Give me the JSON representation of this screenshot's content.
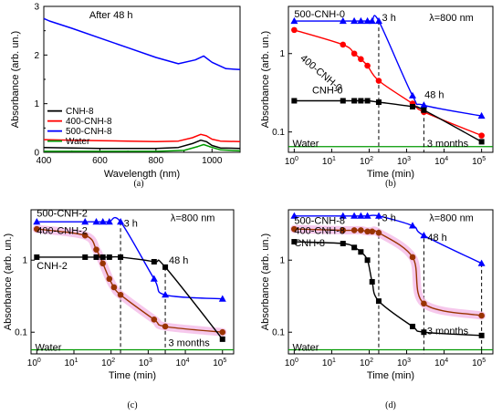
{
  "chart_data": [
    {
      "id": "a",
      "type": "line",
      "caption": "(a)",
      "title": "After 48 h",
      "xlabel": "Wavelength (nm)",
      "ylabel": "Absorbance (arb. un.)",
      "xlim": [
        400,
        1100
      ],
      "ylim": [
        0,
        3
      ],
      "xticks": [
        "400",
        "600",
        "800",
        "1000"
      ],
      "yticks": [
        "0",
        "1",
        "2",
        "3"
      ],
      "legend": "center-left",
      "series": [
        {
          "name": "CNH-8",
          "color": "#000000",
          "x": [
            400,
            500,
            600,
            700,
            800,
            880,
            930,
            960,
            980,
            1000,
            1030,
            1100
          ],
          "y": [
            0.1,
            0.09,
            0.08,
            0.08,
            0.08,
            0.1,
            0.18,
            0.25,
            0.22,
            0.14,
            0.09,
            0.08
          ]
        },
        {
          "name": "400-CNH-8",
          "color": "#ff0000",
          "x": [
            400,
            500,
            600,
            700,
            800,
            880,
            930,
            960,
            980,
            1000,
            1030,
            1100
          ],
          "y": [
            0.26,
            0.25,
            0.24,
            0.23,
            0.22,
            0.23,
            0.3,
            0.37,
            0.34,
            0.27,
            0.23,
            0.22
          ]
        },
        {
          "name": "500-CNH-8",
          "color": "#0000ff",
          "x": [
            400,
            420,
            500,
            600,
            700,
            800,
            880,
            940,
            970,
            1000,
            1050,
            1100
          ],
          "y": [
            2.75,
            2.7,
            2.55,
            2.35,
            2.15,
            1.95,
            1.82,
            1.9,
            1.98,
            1.85,
            1.72,
            1.7
          ]
        },
        {
          "name": "Water",
          "color": "#009900",
          "x": [
            400,
            600,
            800,
            900,
            950,
            970,
            990,
            1030,
            1100
          ],
          "y": [
            0.02,
            0.02,
            0.02,
            0.04,
            0.12,
            0.16,
            0.12,
            0.05,
            0.03
          ]
        }
      ]
    },
    {
      "id": "b",
      "type": "line",
      "caption": "(b)",
      "ylabel": "Absorbance (arb. un.)",
      "xlabel": "Time (min)",
      "xscale": "log",
      "yscale": "log",
      "xlim": [
        0.7,
        200000
      ],
      "ylim": [
        0.055,
        4
      ],
      "xticks": [
        {
          "v": 1,
          "b": "10",
          "e": "0"
        },
        {
          "v": 10,
          "b": "10",
          "e": "1"
        },
        {
          "v": 100,
          "b": "10",
          "e": "2"
        },
        {
          "v": 1000,
          "b": "10",
          "e": "3"
        },
        {
          "v": 10000,
          "b": "10",
          "e": "4"
        },
        {
          "v": 100000,
          "b": "10",
          "e": "5"
        }
      ],
      "yticks": [
        {
          "v": 0.1,
          "t": "0.1"
        },
        {
          "v": 1,
          "t": "1"
        }
      ],
      "water_level": 0.065,
      "vlines": [
        {
          "x": 180,
          "from": 2.6
        },
        {
          "x": 2880,
          "from": 0.22
        }
      ],
      "annotations": [
        {
          "text": "λ=800 nm",
          "x": 4000,
          "y": 2.9
        },
        {
          "text": "3 h",
          "x": 220,
          "y": 2.9
        },
        {
          "text": "48 h",
          "x": 3000,
          "y": 0.3
        },
        {
          "text": "Water",
          "x": 0.9,
          "y": 0.072
        },
        {
          "text": "3 months",
          "x": 3500,
          "y": 0.072
        }
      ],
      "series": [
        {
          "name": "500-CNH-0",
          "color": "#0000ff",
          "marker": "triangle",
          "label_x": 1.0,
          "label_y": 2.9,
          "x": [
            1,
            20,
            40,
            60,
            90,
            120,
            180,
            1440,
            2880,
            100000
          ],
          "y": [
            2.6,
            2.6,
            2.6,
            2.6,
            2.6,
            2.6,
            2.6,
            0.29,
            0.22,
            0.16
          ]
        },
        {
          "name": "400-CNH-0",
          "color": "#ff0000",
          "marker": "circle",
          "label_x": 1.4,
          "label_y": 0.85,
          "label_rotate": 40,
          "x": [
            1,
            20,
            40,
            60,
            90,
            180,
            1440,
            2880,
            100000
          ],
          "y": [
            2.0,
            1.3,
            1.0,
            0.85,
            0.7,
            0.45,
            0.23,
            0.18,
            0.09
          ]
        },
        {
          "name": "CNH-0",
          "color": "#000000",
          "marker": "square",
          "label_x": 3,
          "label_y": 0.31,
          "x": [
            1,
            20,
            40,
            60,
            90,
            180,
            1440,
            2880,
            100000
          ],
          "y": [
            0.25,
            0.25,
            0.25,
            0.25,
            0.25,
            0.24,
            0.21,
            0.19,
            0.075
          ]
        }
      ]
    },
    {
      "id": "c",
      "type": "line",
      "caption": "(c)",
      "ylabel": "Absorbance (arb. un.)",
      "xlabel": "Time (min)",
      "xscale": "log",
      "yscale": "log",
      "xlim": [
        0.7,
        200000
      ],
      "ylim": [
        0.05,
        5
      ],
      "xticks": [
        {
          "v": 1,
          "b": "10",
          "e": "0"
        },
        {
          "v": 10,
          "b": "10",
          "e": "1"
        },
        {
          "v": 100,
          "b": "10",
          "e": "2"
        },
        {
          "v": 1000,
          "b": "10",
          "e": "3"
        },
        {
          "v": 10000,
          "b": "10",
          "e": "4"
        },
        {
          "v": 100000,
          "b": "10",
          "e": "5"
        }
      ],
      "yticks": [
        {
          "v": 0.1,
          "t": "0.1"
        },
        {
          "v": 1,
          "t": "1"
        }
      ],
      "water_level": 0.057,
      "vlines": [
        {
          "x": 180,
          "from": 3.4
        },
        {
          "x": 2880,
          "from": 0.8
        }
      ],
      "annotations": [
        {
          "text": "λ=800 nm",
          "x": 4000,
          "y": 3.9
        },
        {
          "text": "3 h",
          "x": 220,
          "y": 3.3
        },
        {
          "text": "48 h",
          "x": 3600,
          "y": 1.0
        },
        {
          "text": "Water",
          "x": 0.9,
          "y": 0.062
        },
        {
          "text": "3 months",
          "x": 3500,
          "y": 0.072
        }
      ],
      "series": [
        {
          "name": "500-CNH-2",
          "color": "#0000ff",
          "marker": "triangle",
          "label_x": 1.0,
          "label_y": 4.0,
          "x": [
            1,
            20,
            40,
            60,
            90,
            180,
            1440,
            2880,
            100000
          ],
          "y": [
            3.4,
            3.4,
            3.4,
            3.4,
            3.4,
            3.4,
            0.55,
            0.33,
            0.29
          ]
        },
        {
          "name": "400-CNH-2",
          "color": "#993300",
          "marker": "circle",
          "label_x": 1.0,
          "label_y": 2.3,
          "glow": true,
          "x": [
            1,
            20,
            40,
            60,
            90,
            120,
            180,
            1440,
            2880,
            100000
          ],
          "y": [
            2.7,
            2.2,
            1.4,
            0.9,
            0.55,
            0.42,
            0.33,
            0.15,
            0.12,
            0.1
          ]
        },
        {
          "name": "CNH-2",
          "color": "#000000",
          "marker": "square",
          "label_x": 1.0,
          "label_y": 0.75,
          "x": [
            1,
            20,
            40,
            60,
            90,
            180,
            1440,
            2880,
            100000
          ],
          "y": [
            1.1,
            1.1,
            1.1,
            1.1,
            1.1,
            1.1,
            0.95,
            0.8,
            0.08
          ]
        }
      ]
    },
    {
      "id": "d",
      "type": "line",
      "caption": "(d)",
      "ylabel": "Absorbance (arb. un.)",
      "xlabel": "Time (min)",
      "xscale": "log",
      "yscale": "log",
      "xlim": [
        0.7,
        200000
      ],
      "ylim": [
        0.05,
        5
      ],
      "xticks": [
        {
          "v": 1,
          "b": "10",
          "e": "0"
        },
        {
          "v": 10,
          "b": "10",
          "e": "1"
        },
        {
          "v": 100,
          "b": "10",
          "e": "2"
        },
        {
          "v": 1000,
          "b": "10",
          "e": "3"
        },
        {
          "v": 10000,
          "b": "10",
          "e": "4"
        },
        {
          "v": 100000,
          "b": "10",
          "e": "5"
        }
      ],
      "yticks": [
        {
          "v": 0.1,
          "t": "0.1"
        },
        {
          "v": 1,
          "t": "1"
        }
      ],
      "water_level": 0.057,
      "vlines": [
        {
          "x": 180,
          "from": 4.1
        },
        {
          "x": 2880,
          "from": 2.0
        },
        {
          "x": 100000,
          "from": 0.9
        }
      ],
      "annotations": [
        {
          "text": "λ=800 nm",
          "x": 4000,
          "y": 3.9
        },
        {
          "text": "3 h",
          "x": 220,
          "y": 3.9
        },
        {
          "text": "48 h",
          "x": 3600,
          "y": 2.1
        },
        {
          "text": "Water",
          "x": 0.9,
          "y": 0.062
        },
        {
          "text": "3 months",
          "x": 3500,
          "y": 0.105
        }
      ],
      "series": [
        {
          "name": "500-CNH-8",
          "color": "#0000ff",
          "marker": "triangle",
          "label_x": 1.0,
          "label_y": 3.2,
          "x": [
            1,
            20,
            40,
            60,
            90,
            180,
            1440,
            2880,
            100000
          ],
          "y": [
            4.1,
            4.1,
            4.1,
            4.1,
            4.1,
            4.1,
            3.0,
            2.2,
            0.9
          ]
        },
        {
          "name": "400-CNH-8",
          "color": "#993300",
          "marker": "circle",
          "label_x": 1.0,
          "label_y": 2.3,
          "glow": true,
          "x": [
            1,
            20,
            40,
            60,
            90,
            120,
            180,
            1440,
            2880,
            100000
          ],
          "y": [
            2.7,
            2.6,
            2.6,
            2.6,
            2.5,
            2.5,
            2.4,
            1.1,
            0.25,
            0.17
          ]
        },
        {
          "name": "CNH-8",
          "color": "#000000",
          "marker": "square",
          "label_x": 1.0,
          "label_y": 1.55,
          "x": [
            1,
            20,
            40,
            60,
            90,
            120,
            180,
            1440,
            2880,
            100000
          ],
          "y": [
            1.8,
            1.7,
            1.5,
            1.3,
            1.0,
            0.5,
            0.27,
            0.12,
            0.1,
            0.09
          ]
        }
      ]
    }
  ]
}
